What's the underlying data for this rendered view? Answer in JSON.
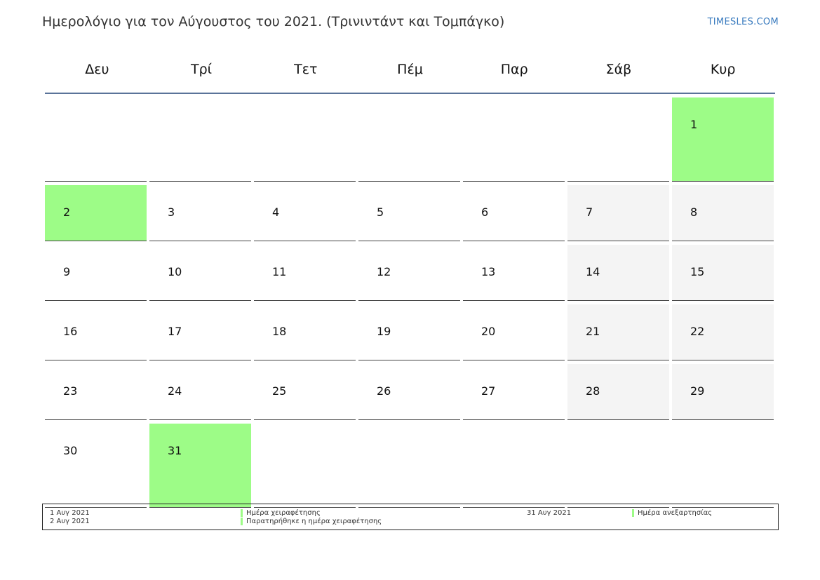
{
  "header": {
    "title": "Ημερολόγιο για τον Αύγουστος του 2021. (Τρινιντάντ και Τομπάγκο)",
    "brand": "TIMESLES.COM"
  },
  "weekdays": [
    "Δευ",
    "Τρί",
    "Τετ",
    "Πέμ",
    "Παρ",
    "Σάβ",
    "Κυρ"
  ],
  "colors": {
    "holiday": "#9dfc87",
    "weekend": "#f4f4f4",
    "header_rule": "#5a7399",
    "brand": "#3a7bbf"
  },
  "calendar": {
    "month": "Αύγουστος",
    "year": "2021",
    "weeks": [
      [
        null,
        null,
        null,
        null,
        null,
        null,
        {
          "day": "1",
          "holiday": true
        }
      ],
      [
        {
          "day": "2",
          "holiday": true
        },
        {
          "day": "3"
        },
        {
          "day": "4"
        },
        {
          "day": "5"
        },
        {
          "day": "6"
        },
        {
          "day": "7"
        },
        {
          "day": "8"
        }
      ],
      [
        {
          "day": "9"
        },
        {
          "day": "10"
        },
        {
          "day": "11"
        },
        {
          "day": "12"
        },
        {
          "day": "13"
        },
        {
          "day": "14"
        },
        {
          "day": "15"
        }
      ],
      [
        {
          "day": "16"
        },
        {
          "day": "17"
        },
        {
          "day": "18"
        },
        {
          "day": "19"
        },
        {
          "day": "20"
        },
        {
          "day": "21"
        },
        {
          "day": "22"
        }
      ],
      [
        {
          "day": "23"
        },
        {
          "day": "24"
        },
        {
          "day": "25"
        },
        {
          "day": "26"
        },
        {
          "day": "27"
        },
        {
          "day": "28"
        },
        {
          "day": "29"
        }
      ],
      [
        {
          "day": "30"
        },
        {
          "day": "31",
          "holiday": true
        },
        null,
        null,
        null,
        null,
        null
      ]
    ]
  },
  "legend": [
    {
      "date": "1 Αυγ 2021",
      "name": "Ημέρα χειραφέτησης"
    },
    {
      "date": "2 Αυγ 2021",
      "name": "Παρατηρήθηκε η ημέρα χειραφέτησης"
    },
    {
      "date": "31 Αυγ 2021",
      "name": "Ημέρα ανεξαρτησίας"
    }
  ]
}
